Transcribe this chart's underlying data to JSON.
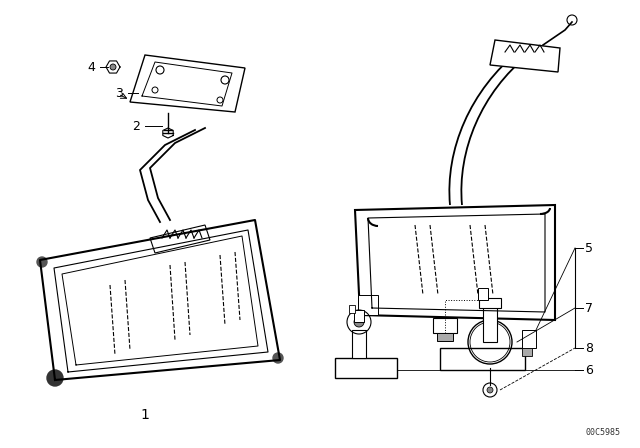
{
  "bg_color": "#ffffff",
  "line_color": "#000000",
  "fig_width": 6.4,
  "fig_height": 4.48,
  "dpi": 100,
  "catalog_code": "00C5985"
}
